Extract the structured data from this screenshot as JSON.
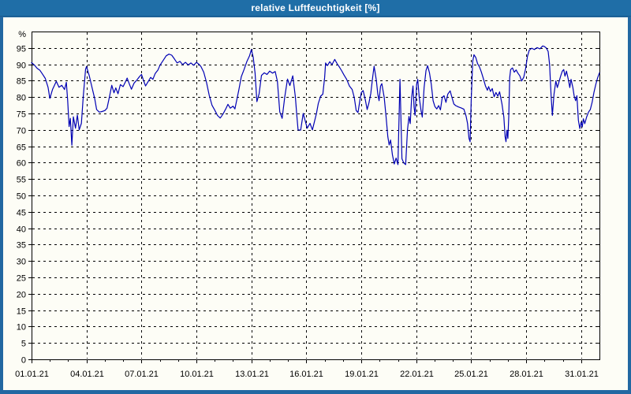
{
  "window": {
    "title": "relative Luftfeuchtigkeit [%]"
  },
  "colors": {
    "window_frame": "#2268a2",
    "titlebar": "#1f6ea7",
    "title_text": "#ffffff",
    "plot_background": "#fdfdf6",
    "axis_and_grid": "#000000",
    "series_line": "#0000b4"
  },
  "chart_data": {
    "type": "line",
    "title": "relative Luftfeuchtigkeit [%]",
    "y_unit_label": "%",
    "ylim": [
      0,
      100
    ],
    "y_ticks": [
      0,
      5,
      10,
      15,
      20,
      25,
      30,
      35,
      40,
      45,
      50,
      55,
      60,
      65,
      70,
      75,
      80,
      85,
      90,
      95
    ],
    "xlim_days": [
      0,
      31
    ],
    "x_tick_labels": [
      "01.01.21",
      "04.01.21",
      "07.01.21",
      "10.01.21",
      "13.01.21",
      "16.01.21",
      "19.01.21",
      "22.01.21",
      "25.01.21",
      "28.01.21",
      "31.01.21"
    ],
    "x_major_tick_days": [
      0,
      3,
      6,
      9,
      12,
      15,
      18,
      21,
      24,
      27,
      30
    ],
    "x_minor_tick_every_days": 1,
    "grid": "dashed",
    "legend": "none",
    "series": [
      {
        "name": "relative Luftfeuchtigkeit",
        "unit": "%",
        "points": [
          [
            0,
            90.5
          ],
          [
            0.15,
            89.8
          ],
          [
            0.3,
            88.8
          ],
          [
            0.45,
            88.2
          ],
          [
            0.6,
            87
          ],
          [
            0.75,
            85.7
          ],
          [
            0.9,
            83
          ],
          [
            1,
            79.6
          ],
          [
            1.15,
            82.4
          ],
          [
            1.35,
            84.8
          ],
          [
            1.5,
            83
          ],
          [
            1.65,
            83.6
          ],
          [
            1.8,
            82.3
          ],
          [
            1.9,
            84.5
          ],
          [
            1.97,
            79
          ],
          [
            2.05,
            71
          ],
          [
            2.12,
            73.5
          ],
          [
            2.2,
            65.3
          ],
          [
            2.28,
            74
          ],
          [
            2.4,
            70.5
          ],
          [
            2.5,
            74.5
          ],
          [
            2.6,
            70
          ],
          [
            2.72,
            72
          ],
          [
            2.82,
            80
          ],
          [
            2.95,
            88.5
          ],
          [
            3,
            89.3
          ],
          [
            3.15,
            86.5
          ],
          [
            3.3,
            83
          ],
          [
            3.45,
            79.5
          ],
          [
            3.55,
            76.2
          ],
          [
            3.7,
            75.4
          ],
          [
            3.85,
            75.6
          ],
          [
            4,
            75.9
          ],
          [
            4.12,
            76.6
          ],
          [
            4.25,
            80
          ],
          [
            4.38,
            83.6
          ],
          [
            4.5,
            81.3
          ],
          [
            4.6,
            82.8
          ],
          [
            4.72,
            81
          ],
          [
            4.85,
            83.8
          ],
          [
            5,
            83.2
          ],
          [
            5.12,
            84.6
          ],
          [
            5.22,
            85.8
          ],
          [
            5.35,
            83.8
          ],
          [
            5.45,
            82.4
          ],
          [
            5.6,
            84.3
          ],
          [
            5.75,
            85.2
          ],
          [
            5.9,
            86.3
          ],
          [
            6,
            86.9
          ],
          [
            6.12,
            85
          ],
          [
            6.22,
            83.4
          ],
          [
            6.35,
            84.6
          ],
          [
            6.5,
            86
          ],
          [
            6.62,
            85.4
          ],
          [
            6.75,
            87.2
          ],
          [
            6.9,
            88.3
          ],
          [
            7,
            89.6
          ],
          [
            7.08,
            90.3
          ],
          [
            7.2,
            91.3
          ],
          [
            7.35,
            92.6
          ],
          [
            7.5,
            93.1
          ],
          [
            7.65,
            92.8
          ],
          [
            7.8,
            91.6
          ],
          [
            7.95,
            90.4
          ],
          [
            8.1,
            90.9
          ],
          [
            8.25,
            89.9
          ],
          [
            8.4,
            90.6
          ],
          [
            8.55,
            89.8
          ],
          [
            8.7,
            90.4
          ],
          [
            8.85,
            89.7
          ],
          [
            9,
            90.6
          ],
          [
            9.12,
            90.1
          ],
          [
            9.25,
            89.3
          ],
          [
            9.4,
            87.6
          ],
          [
            9.55,
            84.5
          ],
          [
            9.7,
            80.5
          ],
          [
            9.85,
            77.5
          ],
          [
            10,
            76
          ],
          [
            10.15,
            74.4
          ],
          [
            10.3,
            73.6
          ],
          [
            10.45,
            74.8
          ],
          [
            10.6,
            76.4
          ],
          [
            10.72,
            77.8
          ],
          [
            10.85,
            76.6
          ],
          [
            11,
            77.2
          ],
          [
            11.1,
            76.4
          ],
          [
            11.22,
            79.6
          ],
          [
            11.32,
            82.3
          ],
          [
            11.45,
            86.2
          ],
          [
            11.6,
            88.4
          ],
          [
            11.75,
            90.8
          ],
          [
            11.9,
            92.6
          ],
          [
            12,
            94.5
          ],
          [
            12.1,
            92.2
          ],
          [
            12.2,
            87.3
          ],
          [
            12.3,
            78.6
          ],
          [
            12.42,
            81
          ],
          [
            12.55,
            86.6
          ],
          [
            12.7,
            87.4
          ],
          [
            12.85,
            86.9
          ],
          [
            13,
            87.9
          ],
          [
            13.15,
            87.3
          ],
          [
            13.3,
            87.8
          ],
          [
            13.42,
            84.8
          ],
          [
            13.55,
            75.5
          ],
          [
            13.68,
            73.5
          ],
          [
            13.82,
            80
          ],
          [
            13.97,
            85.5
          ],
          [
            14.1,
            83.5
          ],
          [
            14.26,
            86.5
          ],
          [
            14.4,
            80
          ],
          [
            14.47,
            75
          ],
          [
            14.55,
            70
          ],
          [
            14.69,
            69.9
          ],
          [
            14.83,
            75
          ],
          [
            15.05,
            70.5
          ],
          [
            15.2,
            72
          ],
          [
            15.33,
            70
          ],
          [
            15.55,
            75
          ],
          [
            15.65,
            78
          ],
          [
            15.78,
            80.3
          ],
          [
            15.9,
            80.9
          ],
          [
            16,
            86
          ],
          [
            16.05,
            90.4
          ],
          [
            16.15,
            89.6
          ],
          [
            16.28,
            90.8
          ],
          [
            16.4,
            89.9
          ],
          [
            16.55,
            91.5
          ],
          [
            16.68,
            90.2
          ],
          [
            16.8,
            89.2
          ],
          [
            16.92,
            88.1
          ],
          [
            17.05,
            86.8
          ],
          [
            17.2,
            85.4
          ],
          [
            17.35,
            83.4
          ],
          [
            17.5,
            82.3
          ],
          [
            17.62,
            79.8
          ],
          [
            17.72,
            75.9
          ],
          [
            17.82,
            75.3
          ],
          [
            17.92,
            78.9
          ],
          [
            18,
            81.4
          ],
          [
            18.1,
            82
          ],
          [
            18.22,
            79.1
          ],
          [
            18.32,
            76.2
          ],
          [
            18.42,
            78.3
          ],
          [
            18.52,
            81.1
          ],
          [
            18.62,
            86.1
          ],
          [
            18.7,
            89.4
          ],
          [
            18.82,
            85.2
          ],
          [
            18.9,
            80.9
          ],
          [
            18.97,
            78.9
          ],
          [
            19.05,
            83.4
          ],
          [
            19.12,
            84.1
          ],
          [
            19.25,
            79.9
          ],
          [
            19.35,
            74.2
          ],
          [
            19.45,
            67.9
          ],
          [
            19.52,
            65.4
          ],
          [
            19.6,
            66.9
          ],
          [
            19.7,
            62.4
          ],
          [
            19.8,
            59.6
          ],
          [
            19.9,
            61.4
          ],
          [
            20,
            59.4
          ],
          [
            20.11,
            85.4
          ],
          [
            20.22,
            61.2
          ],
          [
            20.32,
            59.9
          ],
          [
            20.42,
            59.4
          ],
          [
            20.52,
            69.9
          ],
          [
            20.6,
            74.1
          ],
          [
            20.67,
            71.9
          ],
          [
            20.75,
            79.9
          ],
          [
            20.82,
            83.4
          ],
          [
            20.88,
            76.9
          ],
          [
            20.94,
            74.4
          ],
          [
            21.02,
            83.9
          ],
          [
            21.08,
            85.4
          ],
          [
            21.16,
            79.9
          ],
          [
            21.26,
            75.9
          ],
          [
            21.33,
            73.9
          ],
          [
            21.43,
            82.9
          ],
          [
            21.53,
            88.1
          ],
          [
            21.62,
            89.6
          ],
          [
            21.72,
            87.4
          ],
          [
            21.82,
            83.9
          ],
          [
            21.92,
            78.9
          ],
          [
            22.02,
            77.1
          ],
          [
            22.12,
            76.4
          ],
          [
            22.22,
            77.4
          ],
          [
            22.32,
            76.1
          ],
          [
            22.42,
            79.9
          ],
          [
            22.52,
            80.4
          ],
          [
            22.62,
            78.4
          ],
          [
            22.72,
            80.9
          ],
          [
            22.85,
            81.9
          ],
          [
            22.95,
            79.9
          ],
          [
            23.05,
            77.9
          ],
          [
            23.15,
            77.4
          ],
          [
            23.3,
            77
          ],
          [
            23.45,
            76.7
          ],
          [
            23.6,
            76.3
          ],
          [
            23.72,
            74.2
          ],
          [
            23.8,
            71.9
          ],
          [
            23.88,
            67.4
          ],
          [
            23.94,
            66.4
          ],
          [
            24,
            78.9
          ],
          [
            24.08,
            90.9
          ],
          [
            24.15,
            92.9
          ],
          [
            24.25,
            92.1
          ],
          [
            24.35,
            90.2
          ],
          [
            24.45,
            89.2
          ],
          [
            24.55,
            87.7
          ],
          [
            24.65,
            85.9
          ],
          [
            24.78,
            83.4
          ],
          [
            24.88,
            82.1
          ],
          [
            24.95,
            83.2
          ],
          [
            25.05,
            81.7
          ],
          [
            25.15,
            82.6
          ],
          [
            25.25,
            80.1
          ],
          [
            25.35,
            81.4
          ],
          [
            25.45,
            80.3
          ],
          [
            25.55,
            81.6
          ],
          [
            25.68,
            77.9
          ],
          [
            25.78,
            73.9
          ],
          [
            25.85,
            67.9
          ],
          [
            25.9,
            66.4
          ],
          [
            25.95,
            69.9
          ],
          [
            26,
            67.4
          ],
          [
            26.05,
            73.9
          ],
          [
            26.1,
            85.9
          ],
          [
            26.15,
            88.4
          ],
          [
            26.25,
            88.9
          ],
          [
            26.35,
            87.6
          ],
          [
            26.45,
            88.3
          ],
          [
            26.55,
            87.3
          ],
          [
            26.65,
            86.5
          ],
          [
            26.75,
            84.9
          ],
          [
            26.87,
            86.1
          ],
          [
            26.97,
            88.7
          ],
          [
            27.07,
            92.4
          ],
          [
            27.17,
            94.3
          ],
          [
            27.3,
            94.9
          ],
          [
            27.45,
            94.5
          ],
          [
            27.6,
            95.1
          ],
          [
            27.75,
            94.7
          ],
          [
            27.9,
            95.6
          ],
          [
            28,
            95.4
          ],
          [
            28.1,
            95
          ],
          [
            28.2,
            93.9
          ],
          [
            28.28,
            89.9
          ],
          [
            28.36,
            80.4
          ],
          [
            28.43,
            74.4
          ],
          [
            28.52,
            80.9
          ],
          [
            28.62,
            84.9
          ],
          [
            28.7,
            82.9
          ],
          [
            28.78,
            84.4
          ],
          [
            28.88,
            86.4
          ],
          [
            28.97,
            87.9
          ],
          [
            29.05,
            88.4
          ],
          [
            29.12,
            86.4
          ],
          [
            29.2,
            87.9
          ],
          [
            29.3,
            85.4
          ],
          [
            29.38,
            82.9
          ],
          [
            29.45,
            85.4
          ],
          [
            29.55,
            82.9
          ],
          [
            29.62,
            80.4
          ],
          [
            29.7,
            78.9
          ],
          [
            29.77,
            80.4
          ],
          [
            29.85,
            72.9
          ],
          [
            29.93,
            70.4
          ],
          [
            30,
            72.4
          ],
          [
            30.06,
            70.9
          ],
          [
            30.12,
            73.4
          ],
          [
            30.2,
            71.9
          ],
          [
            30.3,
            73.9
          ],
          [
            30.4,
            75.4
          ],
          [
            30.5,
            76.2
          ],
          [
            30.6,
            78.4
          ],
          [
            30.7,
            81.4
          ],
          [
            30.8,
            83.9
          ],
          [
            30.9,
            85.9
          ],
          [
            31,
            87.4
          ]
        ]
      }
    ]
  }
}
